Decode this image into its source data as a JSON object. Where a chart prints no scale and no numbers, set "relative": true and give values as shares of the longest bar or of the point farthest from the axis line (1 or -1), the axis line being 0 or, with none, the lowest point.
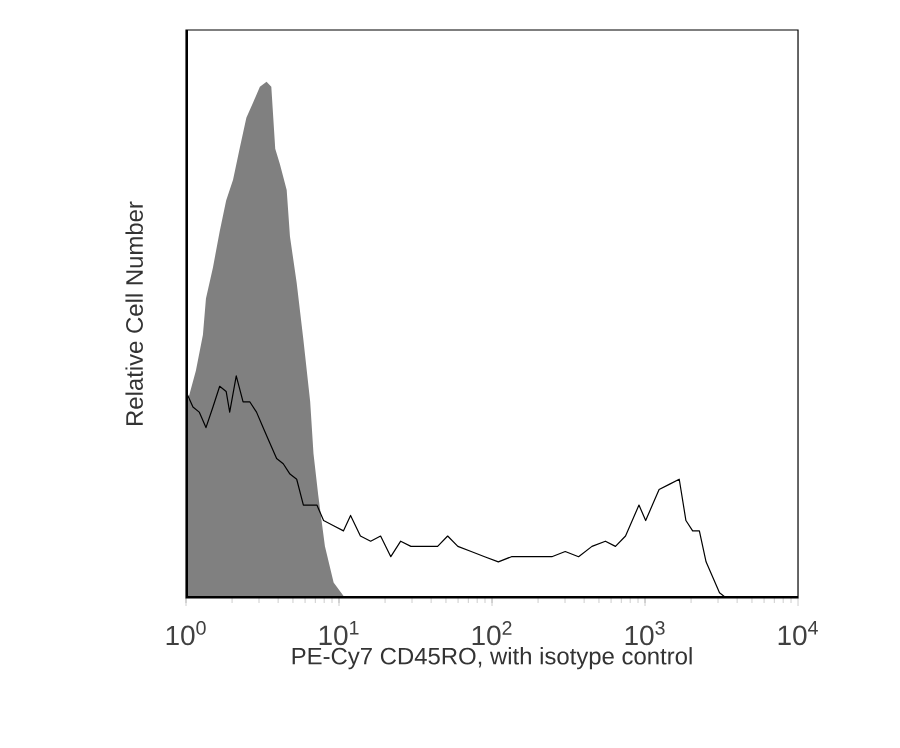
{
  "chart_data": {
    "type": "line",
    "relative": true,
    "log": "x",
    "xlabel": "PE-Cy7 CD45RO, with isotype control",
    "ylabel": "Relative Cell Number",
    "xlim": [
      1,
      10000
    ],
    "xticks": [
      {
        "value": 1,
        "label": "10$^{0}$"
      },
      {
        "value": 10,
        "label": "10$^{1}$"
      },
      {
        "value": 100,
        "label": "10$^{2}$"
      },
      {
        "value": 1000,
        "label": "10$^{3}$"
      },
      {
        "value": 10000,
        "label": "10$^{4}$"
      }
    ],
    "grid": false,
    "series": [
      {
        "type": "area",
        "color": "#808080",
        "x": [
          1,
          1.16,
          1.29,
          1.35,
          1.5,
          1.66,
          1.83,
          2.03,
          2.24,
          2.48,
          2.75,
          3.04,
          3.36,
          3.61,
          3.83,
          4.11,
          4.55,
          4.78,
          5.29,
          5.85,
          6.48,
          6.81,
          7.31,
          8.09,
          9.22,
          10.95
        ],
        "values": [
          0.37,
          0.44,
          0.51,
          0.58,
          0.64,
          0.71,
          0.77,
          0.81,
          0.87,
          0.93,
          0.96,
          0.99,
          1.0,
          0.99,
          0.87,
          0.84,
          0.79,
          0.7,
          0.61,
          0.5,
          0.38,
          0.28,
          0.2,
          0.1,
          0.03,
          0
        ]
      },
      {
        "color": "#000000",
        "x": [
          1,
          1.11,
          1.22,
          1.35,
          1.5,
          1.66,
          1.83,
          1.93,
          2.13,
          2.36,
          2.61,
          2.89,
          3.19,
          3.53,
          3.91,
          4.32,
          4.78,
          5.29,
          5.85,
          6.48,
          7.17,
          7.93,
          9.22,
          10.7,
          11.9,
          13.8,
          16.1,
          18.7,
          21.8,
          25.3,
          29.5,
          36.1,
          44.1,
          51.3,
          59.8,
          73.1,
          89.5,
          110,
          134,
          164,
          201,
          246,
          301,
          368,
          450,
          551,
          641,
          746,
          913,
          1010,
          1117,
          1236,
          1439,
          1674,
          1851,
          2048,
          2266,
          2506,
          2773,
          3068,
          3394,
          3754
        ],
        "values": [
          0.4,
          0.37,
          0.36,
          0.33,
          0.37,
          0.41,
          0.4,
          0.36,
          0.43,
          0.38,
          0.38,
          0.36,
          0.33,
          0.3,
          0.27,
          0.26,
          0.24,
          0.23,
          0.18,
          0.18,
          0.18,
          0.15,
          0.14,
          0.13,
          0.16,
          0.12,
          0.11,
          0.12,
          0.08,
          0.11,
          0.1,
          0.1,
          0.1,
          0.12,
          0.1,
          0.09,
          0.08,
          0.07,
          0.08,
          0.08,
          0.08,
          0.08,
          0.09,
          0.08,
          0.1,
          0.11,
          0.1,
          0.12,
          0.18,
          0.15,
          0.18,
          0.21,
          0.22,
          0.23,
          0.15,
          0.13,
          0.13,
          0.07,
          0.04,
          0.01,
          0,
          0
        ]
      }
    ]
  }
}
